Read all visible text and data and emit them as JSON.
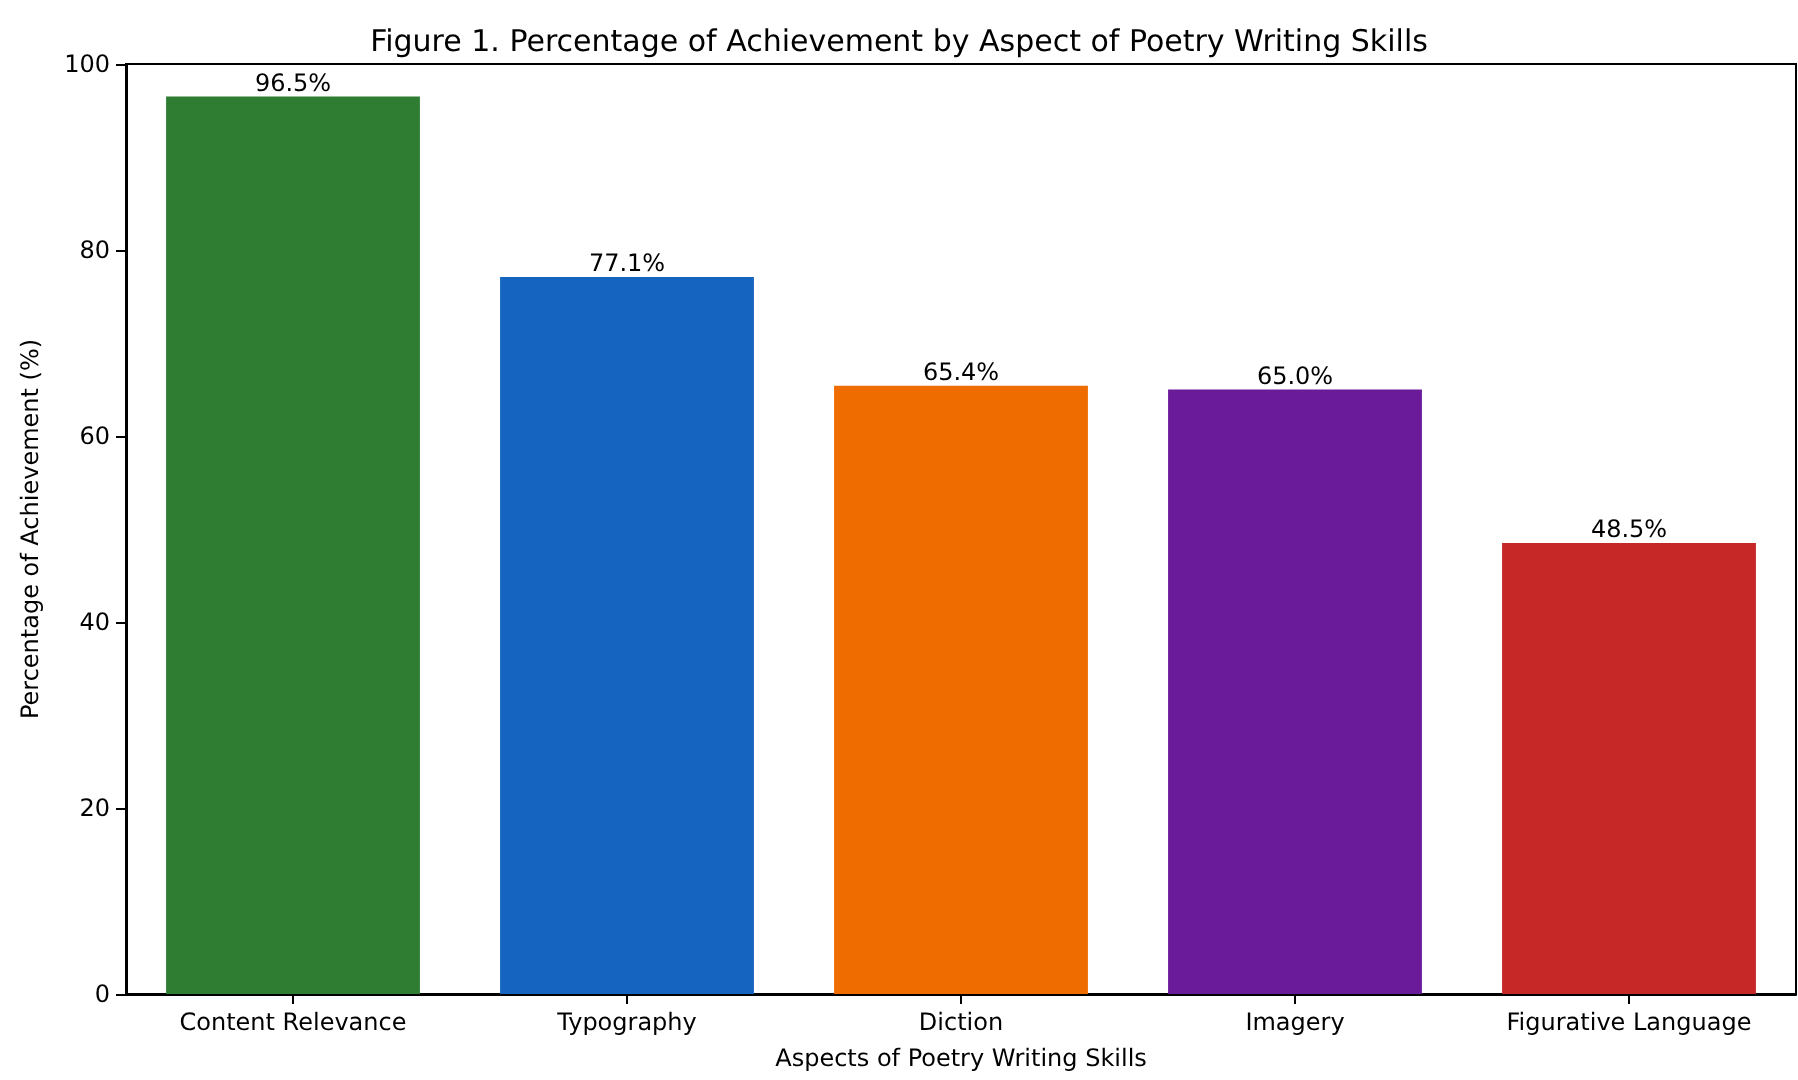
{
  "chart_data": {
    "type": "bar",
    "title": "Figure 1. Percentage of Achievement by Aspect of Poetry Writing Skills",
    "xlabel": "Aspects of Poetry Writing Skills",
    "ylabel": "Percentage of Achievement (%)",
    "categories": [
      "Content Relevance",
      "Typography",
      "Diction",
      "Imagery",
      "Figurative Language"
    ],
    "values": [
      96.5,
      77.1,
      65.4,
      65.0,
      48.5
    ],
    "colors": [
      "#2e7d32",
      "#1565c0",
      "#ef6c00",
      "#6a1b9a",
      "#c62828"
    ],
    "value_labels": [
      "96.5%",
      "77.1%",
      "65.4%",
      "65.0%",
      "48.5%"
    ],
    "ylim": [
      0,
      100
    ],
    "yticks": [
      0,
      20,
      40,
      60,
      80,
      100
    ],
    "grid": false
  }
}
